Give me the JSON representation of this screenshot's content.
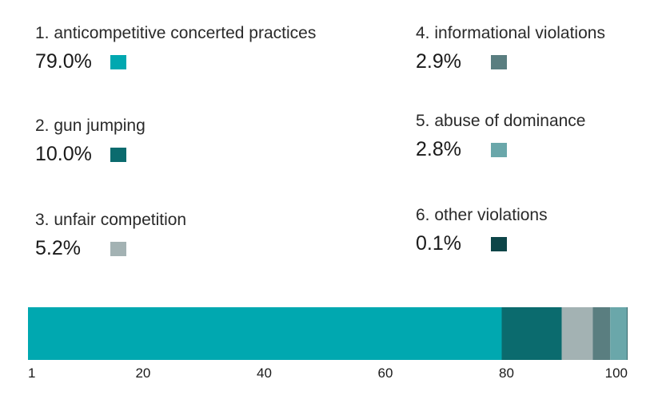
{
  "chart_data": {
    "type": "bar",
    "orientation": "horizontal-stacked",
    "categories": [
      "1. anticompetitive concerted practices",
      "2. gun jumping",
      "3. unfair competition",
      "4. informational violations",
      "5. abuse of dominance",
      "6. other violations"
    ],
    "values": [
      79.0,
      10.0,
      5.2,
      2.9,
      2.8,
      0.1
    ],
    "value_labels": [
      "79.0%",
      "10.0%",
      "5.2%",
      "2.9%",
      "2.8%",
      "0.1%"
    ],
    "colors": [
      "#00a8b0",
      "#0b6b6e",
      "#a3b2b3",
      "#5a7e80",
      "#6aa7aa",
      "#0d4548"
    ],
    "x_ticks": [
      1,
      20,
      40,
      60,
      80,
      100
    ],
    "xlim": [
      1,
      100
    ],
    "grid": false,
    "legend_position": "top"
  }
}
